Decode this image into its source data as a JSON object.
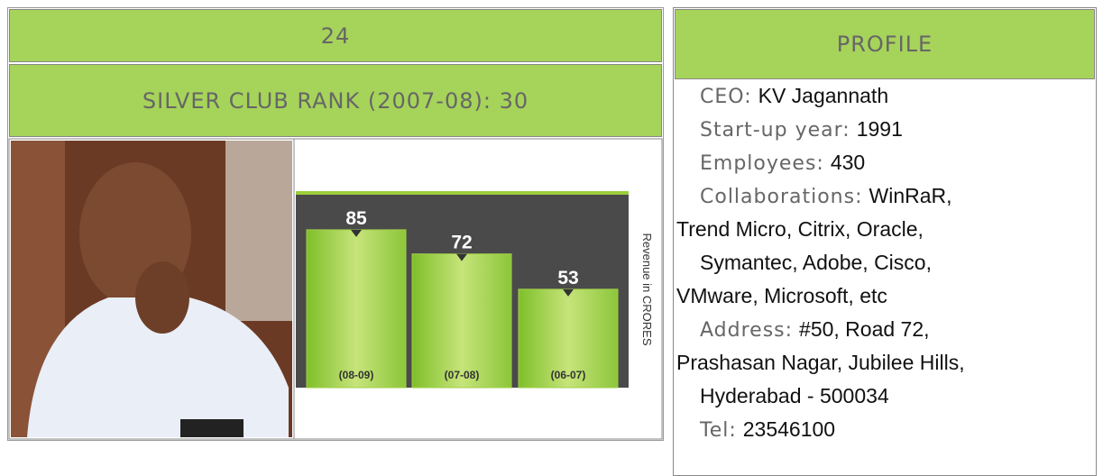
{
  "left": {
    "rank": "24",
    "silver_club": "SILVER CLUB RANK (2007-08): 30"
  },
  "chart_data": {
    "type": "bar",
    "y_label": "Revenue in CRORES",
    "categories": [
      "(08-09)",
      "(07-08)",
      "(06-07)"
    ],
    "values": [
      85,
      72,
      53
    ],
    "color": "#a3cf4a"
  },
  "profile": {
    "title": "PROFILE",
    "items": [
      {
        "label": "CEO:",
        "value": [
          "KV Jagannath"
        ]
      },
      {
        "label": "Start-up year:",
        "value": [
          "1991"
        ]
      },
      {
        "label": "Employees:",
        "value": [
          "430"
        ]
      },
      {
        "label": "Collaborations:",
        "value": [
          "WinRaR,",
          "Trend Micro, Citrix, Oracle,",
          "Symantec, Adobe, Cisco,",
          "VMware, Microsoft, etc"
        ]
      },
      {
        "label": "Address:",
        "value": [
          "#50, Road 72,",
          "Prashasan Nagar, Jubilee Hills,",
          "Hyderabad - 500034"
        ]
      },
      {
        "label": "Tel:",
        "value": [
          "23546100"
        ]
      }
    ]
  }
}
